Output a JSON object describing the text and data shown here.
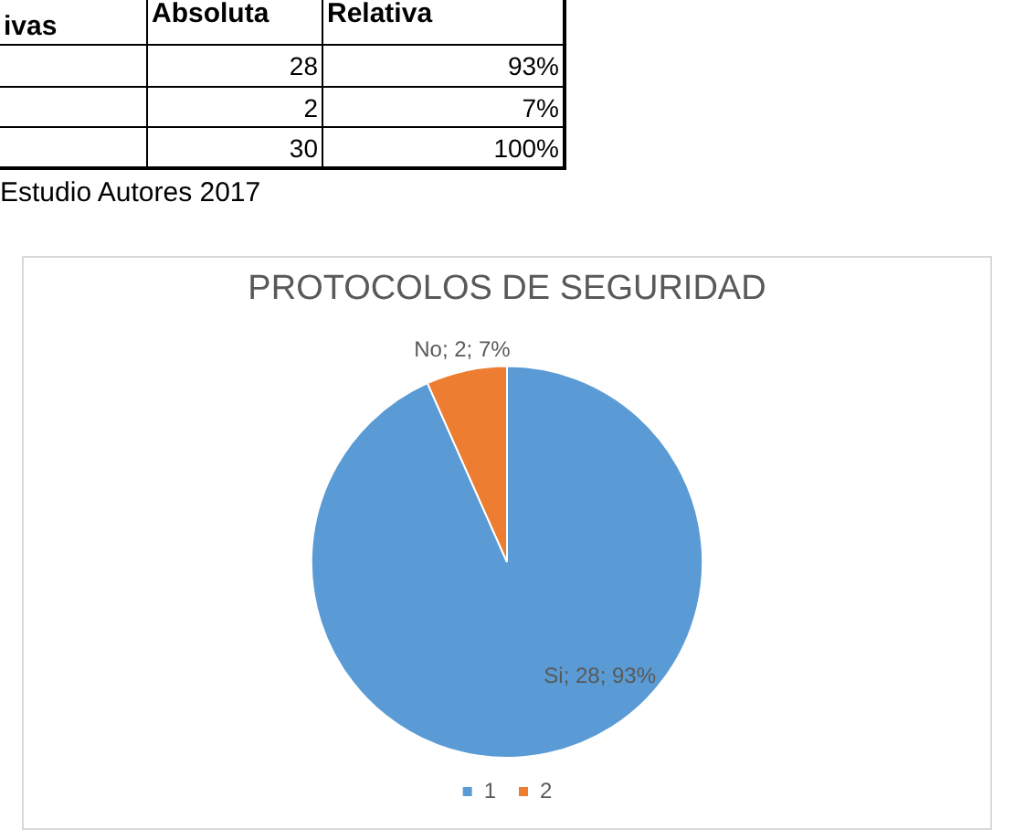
{
  "chart_data": [
    {
      "type": "other",
      "annotations": [
        "ivas",
        "Absoluta",
        "Relativa",
        "28",
        "93%",
        "2",
        "7%",
        "30",
        "100%",
        "Estudio Autores 2017"
      ]
    },
    {
      "type": "pie",
      "title": "PROTOCOLOS DE SEGURIDAD",
      "categories": [
        "1",
        "2"
      ],
      "values": [
        28,
        2
      ],
      "colors": [
        "#5b9bd5",
        "#ed7d31"
      ],
      "value_labels": [
        "Si; 28; 93%",
        "No; 2; 7%"
      ],
      "legend": "bottom"
    }
  ]
}
